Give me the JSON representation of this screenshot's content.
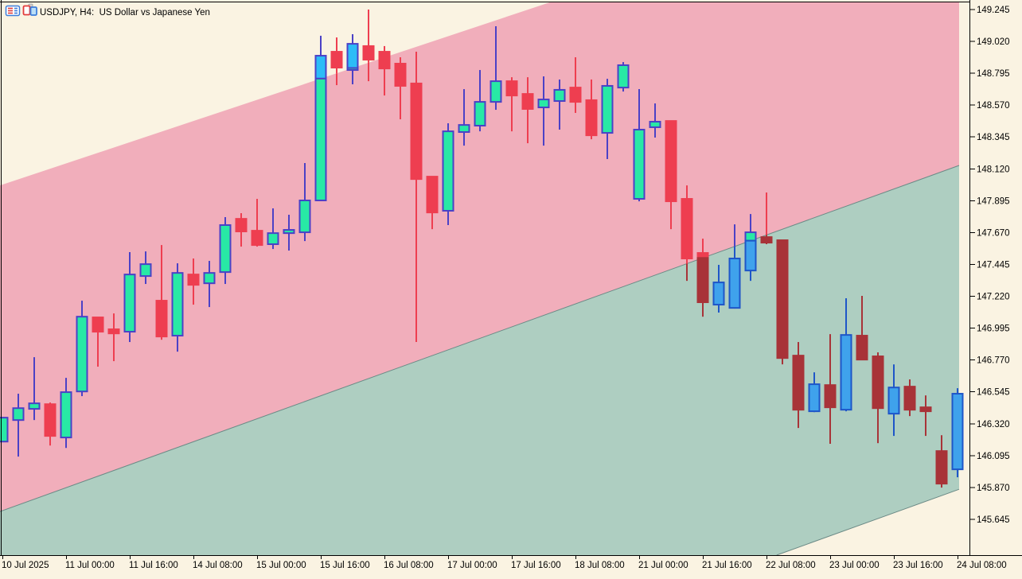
{
  "window": {
    "title": "USDJPY, H4:  US Dollar vs Japanese Yen",
    "symbol": "USDJPY",
    "timeframe": "H4"
  },
  "colors": {
    "background": "#FAF3E2",
    "band_upper": "#F1AEBB",
    "band_lower": "#AECEC1",
    "band_edge": "#6b8a86",
    "bull_body_in_band": "#28E9A5",
    "bull_border": "#4B41C6",
    "bull_body_below": "#3FA2EC",
    "bull_border_below": "#1E56C8",
    "bull_body_above": "#2CBCF7",
    "bear_body": "#EE3E50",
    "bear_body_below": "#A83338",
    "axis": "#000000"
  },
  "chart_data": {
    "type": "candlestick",
    "title": "USDJPY, H4: US Dollar vs Japanese Yen",
    "price_step": 0.225,
    "y_ticks": [
      "149.245",
      "149.020",
      "148.795",
      "148.570",
      "148.345",
      "148.120",
      "147.895",
      "147.670",
      "147.445",
      "147.220",
      "146.995",
      "146.770",
      "146.545",
      "146.320",
      "146.095",
      "145.870",
      "145.645"
    ],
    "x_labels": [
      "10 Jul 2025",
      "11 Jul 00:00",
      "11 Jul 16:00",
      "14 Jul 08:00",
      "15 Jul 00:00",
      "15 Jul 16:00",
      "16 Jul 08:00",
      "17 Jul 00:00",
      "17 Jul 16:00",
      "18 Jul 08:00",
      "21 Jul 00:00",
      "21 Jul 16:00",
      "22 Jul 08:00",
      "23 Jul 00:00",
      "23 Jul 16:00",
      "24 Jul 08:00"
    ],
    "candles_per_label": 4,
    "channel": {
      "type": "equidistant",
      "upper_line": {
        "price_left": 148.003,
        "price_right": 150.258
      },
      "middle_line": {
        "price_left": 145.7,
        "price_right": 148.144
      },
      "lower_line": {
        "price_left": 143.413,
        "price_right": 145.857
      }
    },
    "candles": [
      {
        "d": "up",
        "o": 146.194,
        "h": 146.363,
        "l": 146.194,
        "c": 146.363,
        "clip": "left"
      },
      {
        "d": "up",
        "o": 146.346,
        "h": 146.532,
        "l": 146.088,
        "c": 146.43
      },
      {
        "d": "up",
        "o": 146.425,
        "h": 146.79,
        "l": 146.346,
        "c": 146.464
      },
      {
        "d": "dn",
        "o": 146.458,
        "h": 146.47,
        "l": 146.166,
        "c": 146.234
      },
      {
        "d": "up",
        "o": 146.223,
        "h": 146.644,
        "l": 146.149,
        "c": 146.543
      },
      {
        "d": "up",
        "o": 146.548,
        "h": 147.189,
        "l": 146.515,
        "c": 147.076
      },
      {
        "d": "dn",
        "o": 147.071,
        "h": 147.071,
        "l": 146.723,
        "c": 146.97
      },
      {
        "d": "dn",
        "o": 146.987,
        "h": 147.099,
        "l": 146.762,
        "c": 146.958
      },
      {
        "d": "up",
        "o": 146.97,
        "h": 147.532,
        "l": 146.897,
        "c": 147.374
      },
      {
        "d": "up",
        "o": 147.363,
        "h": 147.537,
        "l": 147.307,
        "c": 147.447
      },
      {
        "d": "dn",
        "o": 147.189,
        "h": 147.582,
        "l": 146.913,
        "c": 146.936
      },
      {
        "d": "up",
        "o": 146.942,
        "h": 147.453,
        "l": 146.829,
        "c": 147.385
      },
      {
        "d": "dn",
        "o": 147.374,
        "h": 147.487,
        "l": 147.161,
        "c": 147.301
      },
      {
        "d": "up",
        "o": 147.312,
        "h": 147.47,
        "l": 147.144,
        "c": 147.385
      },
      {
        "d": "up",
        "o": 147.391,
        "h": 147.779,
        "l": 147.307,
        "c": 147.723
      },
      {
        "d": "dn",
        "o": 147.767,
        "h": 147.807,
        "l": 147.571,
        "c": 147.678
      },
      {
        "d": "dn",
        "o": 147.683,
        "h": 147.908,
        "l": 147.571,
        "c": 147.582
      },
      {
        "d": "up",
        "o": 147.588,
        "h": 147.841,
        "l": 147.554,
        "c": 147.666
      },
      {
        "d": "up",
        "o": 147.666,
        "h": 147.796,
        "l": 147.543,
        "c": 147.689
      },
      {
        "d": "up",
        "o": 147.672,
        "h": 148.161,
        "l": 147.61,
        "c": 147.897
      },
      {
        "d": "up",
        "o": 147.897,
        "h": 149.06,
        "l": 147.897,
        "c": 148.919
      },
      {
        "d": "dn",
        "o": 148.947,
        "h": 149.048,
        "l": 148.711,
        "c": 148.835
      },
      {
        "d": "up",
        "o": 148.818,
        "h": 149.071,
        "l": 148.717,
        "c": 149.003
      },
      {
        "d": "dn",
        "o": 148.987,
        "h": 149.245,
        "l": 148.739,
        "c": 148.891
      },
      {
        "d": "dn",
        "o": 148.947,
        "h": 148.987,
        "l": 148.638,
        "c": 148.829
      },
      {
        "d": "dn",
        "o": 148.863,
        "h": 148.908,
        "l": 148.47,
        "c": 148.706
      },
      {
        "d": "dn",
        "o": 148.723,
        "h": 148.947,
        "l": 146.897,
        "c": 148.048
      },
      {
        "d": "dn",
        "o": 148.065,
        "h": 148.065,
        "l": 147.694,
        "c": 147.812
      },
      {
        "d": "up",
        "o": 147.824,
        "h": 148.442,
        "l": 147.723,
        "c": 148.385
      },
      {
        "d": "up",
        "o": 148.38,
        "h": 148.683,
        "l": 148.284,
        "c": 148.43
      },
      {
        "d": "up",
        "o": 148.425,
        "h": 148.818,
        "l": 148.385,
        "c": 148.593
      },
      {
        "d": "up",
        "o": 148.593,
        "h": 149.127,
        "l": 148.537,
        "c": 148.739
      },
      {
        "d": "dn",
        "o": 148.739,
        "h": 148.767,
        "l": 148.385,
        "c": 148.638
      },
      {
        "d": "dn",
        "o": 148.649,
        "h": 148.767,
        "l": 148.301,
        "c": 148.543
      },
      {
        "d": "up",
        "o": 148.554,
        "h": 148.773,
        "l": 148.284,
        "c": 148.61
      },
      {
        "d": "up",
        "o": 148.599,
        "h": 148.751,
        "l": 148.397,
        "c": 148.678
      },
      {
        "d": "dn",
        "o": 148.694,
        "h": 148.908,
        "l": 148.515,
        "c": 148.593
      },
      {
        "d": "dn",
        "o": 148.605,
        "h": 148.751,
        "l": 148.329,
        "c": 148.357
      },
      {
        "d": "up",
        "o": 148.374,
        "h": 148.756,
        "l": 148.189,
        "c": 148.706
      },
      {
        "d": "up",
        "o": 148.694,
        "h": 148.874,
        "l": 148.666,
        "c": 148.852
      },
      {
        "d": "up",
        "o": 147.908,
        "h": 148.683,
        "l": 147.891,
        "c": 148.397
      },
      {
        "d": "up",
        "o": 148.414,
        "h": 148.582,
        "l": 148.341,
        "c": 148.453
      },
      {
        "d": "dn",
        "o": 148.458,
        "h": 148.458,
        "l": 147.694,
        "c": 147.891
      },
      {
        "d": "dn",
        "o": 147.908,
        "h": 148.003,
        "l": 147.329,
        "c": 147.487
      },
      {
        "d": "dn",
        "o": 147.526,
        "h": 147.627,
        "l": 147.076,
        "c": 147.178
      },
      {
        "d": "up",
        "o": 147.161,
        "h": 147.442,
        "l": 147.105,
        "c": 147.318
      },
      {
        "d": "up",
        "o": 147.138,
        "h": 147.728,
        "l": 147.133,
        "c": 147.487
      },
      {
        "d": "up",
        "o": 147.402,
        "h": 147.801,
        "l": 147.329,
        "c": 147.672
      },
      {
        "d": "dn",
        "o": 147.638,
        "h": 147.953,
        "l": 147.588,
        "c": 147.599
      },
      {
        "d": "dn",
        "o": 147.616,
        "h": 147.616,
        "l": 146.739,
        "c": 146.784
      },
      {
        "d": "dn",
        "o": 146.801,
        "h": 146.897,
        "l": 146.29,
        "c": 146.419
      },
      {
        "d": "up",
        "o": 146.408,
        "h": 146.683,
        "l": 146.402,
        "c": 146.599
      },
      {
        "d": "dn",
        "o": 146.593,
        "h": 146.953,
        "l": 146.178,
        "c": 146.436
      },
      {
        "d": "up",
        "o": 146.419,
        "h": 147.206,
        "l": 146.408,
        "c": 146.947
      },
      {
        "d": "dn",
        "o": 146.942,
        "h": 147.223,
        "l": 146.773,
        "c": 146.773
      },
      {
        "d": "dn",
        "o": 146.796,
        "h": 146.824,
        "l": 146.183,
        "c": 146.43
      },
      {
        "d": "up",
        "o": 146.391,
        "h": 146.739,
        "l": 146.234,
        "c": 146.576
      },
      {
        "d": "dn",
        "o": 146.582,
        "h": 146.633,
        "l": 146.374,
        "c": 146.419
      },
      {
        "d": "dn",
        "o": 146.436,
        "h": 146.52,
        "l": 146.234,
        "c": 146.408
      },
      {
        "d": "dn",
        "o": 146.127,
        "h": 146.239,
        "l": 145.869,
        "c": 145.897
      },
      {
        "d": "up",
        "o": 145.998,
        "h": 146.571,
        "l": 145.942,
        "c": 146.532
      }
    ]
  }
}
